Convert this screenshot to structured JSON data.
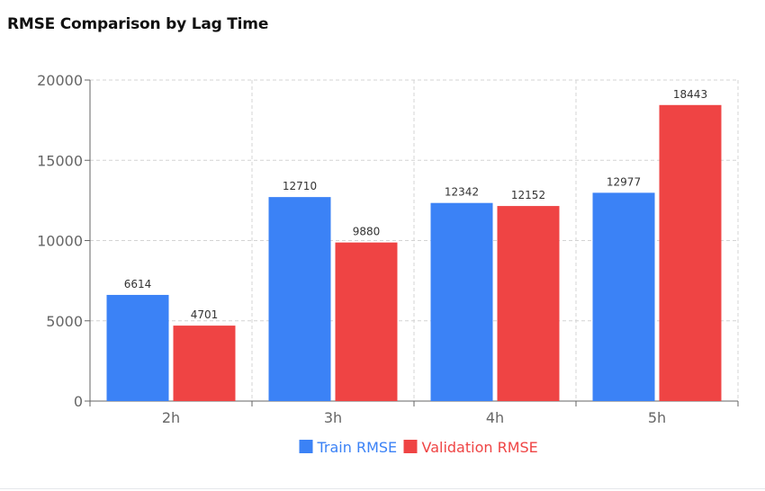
{
  "title": "RMSE Comparison by Lag Time",
  "colors": {
    "train": "#3b82f6",
    "validation": "#ef4444",
    "grid": "#d4d4d4",
    "axis": "#666666"
  },
  "chart_data": {
    "type": "bar",
    "title": "RMSE Comparison by Lag Time",
    "xlabel": "",
    "ylabel": "",
    "categories": [
      "2h",
      "3h",
      "4h",
      "5h"
    ],
    "series": [
      {
        "name": "Train RMSE",
        "color": "#3b82f6",
        "values": [
          6614,
          12710,
          12342,
          12977
        ]
      },
      {
        "name": "Validation RMSE",
        "color": "#ef4444",
        "values": [
          4701,
          9880,
          12152,
          18443
        ]
      }
    ],
    "ylim": [
      0,
      20000
    ],
    "yticks": [
      0,
      5000,
      10000,
      15000,
      20000
    ],
    "grid": true,
    "legend_position": "bottom-center",
    "data_labels": true
  }
}
